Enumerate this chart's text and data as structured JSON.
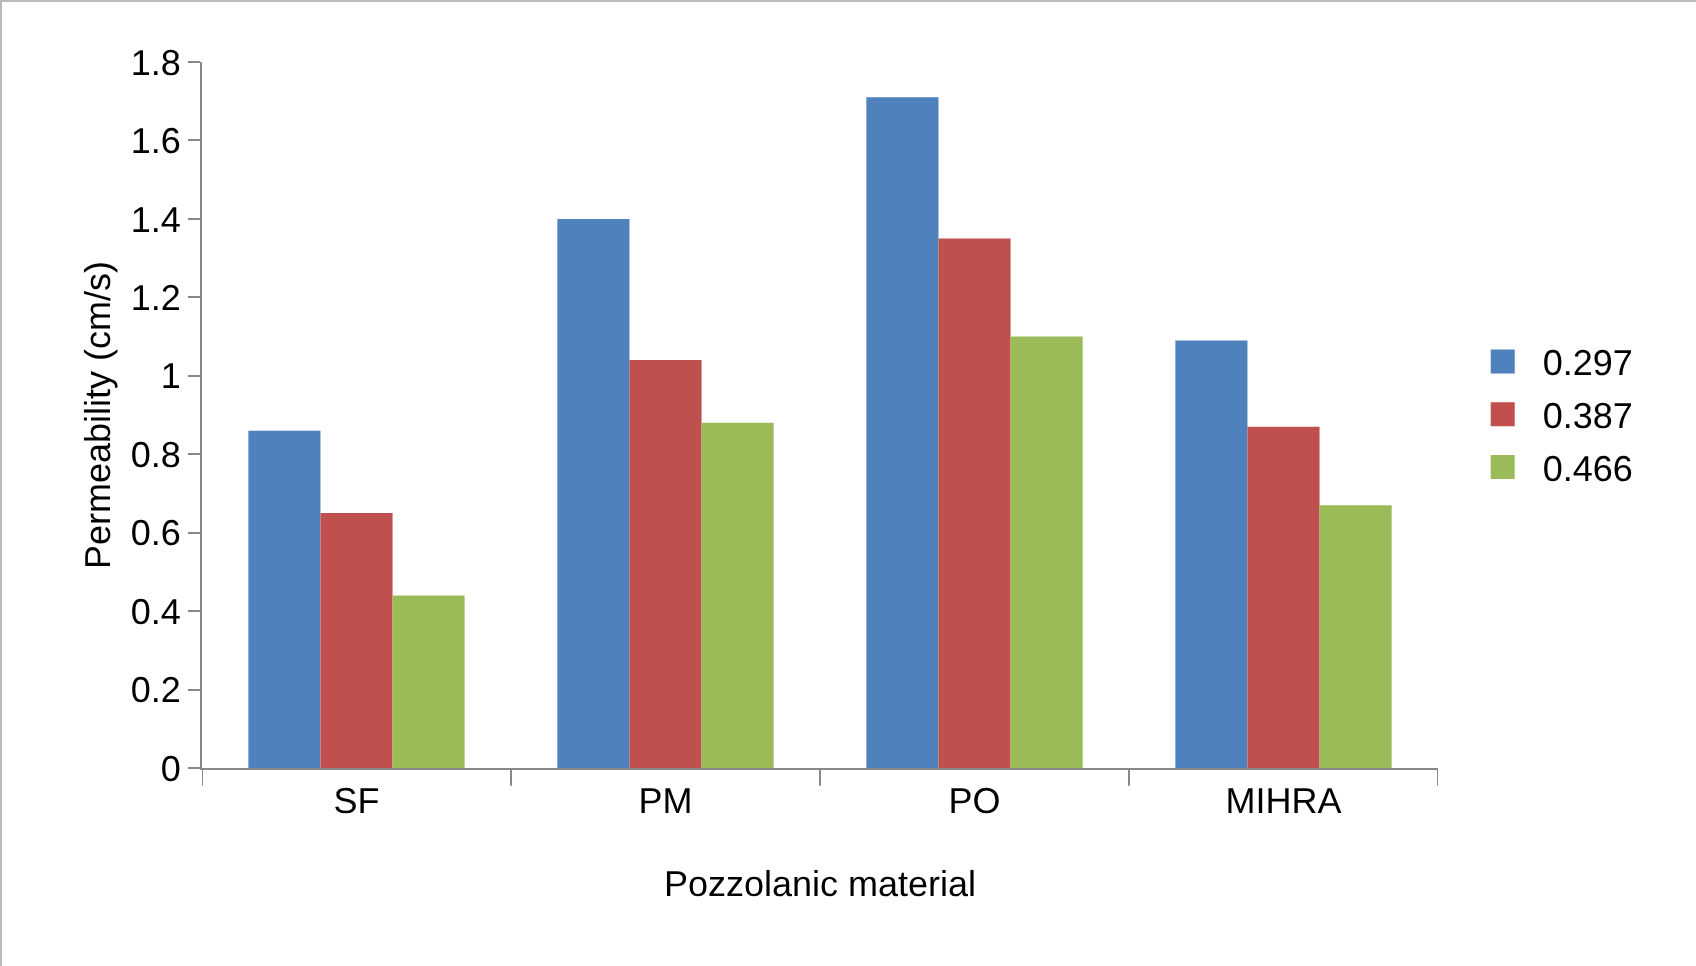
{
  "chart_data": {
    "type": "bar",
    "xlabel": "Pozzolanic material",
    "ylabel": "Permeability (cm/s)",
    "categories": [
      "SF",
      "PM",
      "PO",
      "MIHRA"
    ],
    "series": [
      {
        "name": "0.297",
        "color": "#4f81bd",
        "values": [
          0.86,
          1.4,
          1.71,
          1.09
        ]
      },
      {
        "name": "0.387",
        "color": "#c0504d",
        "values": [
          0.65,
          1.04,
          1.35,
          0.87
        ]
      },
      {
        "name": "0.466",
        "color": "#9bbb59",
        "values": [
          0.44,
          0.88,
          1.1,
          0.67
        ]
      }
    ],
    "ylim": [
      0,
      1.8
    ],
    "yticks": [
      0,
      0.2,
      0.4,
      0.6,
      0.8,
      1,
      1.2,
      1.4,
      1.6,
      1.8
    ],
    "grid": false,
    "legend": "right"
  }
}
